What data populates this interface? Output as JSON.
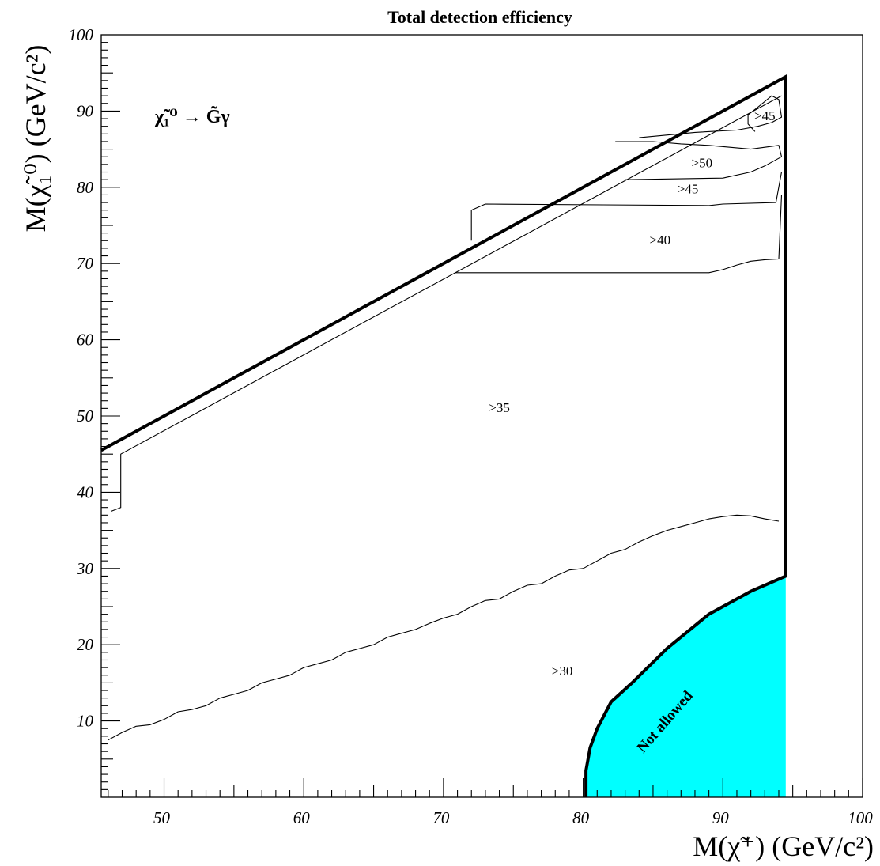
{
  "chart_data": {
    "type": "contour",
    "title": "Total detection efficiency",
    "xlabel": "M(χ̃⁺) (GeV/c²)",
    "ylabel": "M(χ̃₁⁰) (GeV/c²)",
    "xlim": [
      45.5,
      100
    ],
    "ylim": [
      0,
      100
    ],
    "x_ticks": [
      50,
      60,
      70,
      80,
      90,
      100
    ],
    "y_ticks": [
      10,
      20,
      30,
      40,
      50,
      60,
      70,
      80,
      90,
      100
    ],
    "process_label": "χ̃₁⁰ → G̃γ",
    "kinematic_boundary": [
      [
        45.5,
        45.5
      ],
      [
        94.5,
        94.5
      ],
      [
        94.5,
        29
      ],
      [
        92,
        27
      ],
      [
        89,
        24
      ],
      [
        86,
        19.5
      ],
      [
        83.5,
        15
      ],
      [
        82,
        12.5
      ],
      [
        81,
        9
      ],
      [
        80.5,
        6.5
      ],
      [
        80.2,
        3.5
      ],
      [
        80.2,
        0
      ]
    ],
    "not_allowed_region": {
      "label": "Not allowed",
      "color": "#00ffff",
      "boundary": [
        [
          80.2,
          0
        ],
        [
          80.2,
          3.5
        ],
        [
          80.5,
          6.5
        ],
        [
          81,
          9
        ],
        [
          82,
          12.5
        ],
        [
          83.5,
          15
        ],
        [
          86,
          19.5
        ],
        [
          89,
          24
        ],
        [
          92,
          27
        ],
        [
          94.5,
          29
        ],
        [
          94.5,
          0
        ]
      ]
    },
    "contours": [
      {
        "label": ">30",
        "label_at": [
          78.5,
          16
        ],
        "points": [
          [
            46,
            7.5
          ],
          [
            47,
            8.5
          ],
          [
            48,
            9.3
          ],
          [
            49,
            9.5
          ],
          [
            50,
            10.2
          ],
          [
            51,
            11.2
          ],
          [
            52,
            11.5
          ],
          [
            53,
            12
          ],
          [
            54,
            13
          ],
          [
            55,
            13.5
          ],
          [
            56,
            14
          ],
          [
            57,
            15
          ],
          [
            58,
            15.5
          ],
          [
            59,
            16
          ],
          [
            60,
            17
          ],
          [
            61,
            17.5
          ],
          [
            62,
            18
          ],
          [
            63,
            19
          ],
          [
            64,
            19.5
          ],
          [
            65,
            20
          ],
          [
            66,
            21
          ],
          [
            67,
            21.5
          ],
          [
            68,
            22
          ],
          [
            69,
            22.8
          ],
          [
            70,
            23.5
          ],
          [
            71,
            24
          ],
          [
            72,
            25
          ],
          [
            73,
            25.8
          ],
          [
            74,
            26
          ],
          [
            75,
            27
          ],
          [
            76,
            27.8
          ],
          [
            77,
            28
          ],
          [
            78,
            29
          ],
          [
            79,
            29.8
          ],
          [
            80,
            30
          ],
          [
            81,
            31
          ],
          [
            82,
            32
          ],
          [
            83,
            32.5
          ],
          [
            84,
            33.5
          ],
          [
            85,
            34.3
          ],
          [
            86,
            35
          ],
          [
            87,
            35.5
          ],
          [
            88,
            36
          ],
          [
            89,
            36.5
          ],
          [
            90,
            36.8
          ],
          [
            91,
            37
          ],
          [
            92,
            36.9
          ],
          [
            93,
            36.5
          ],
          [
            94,
            36.2
          ]
        ]
      },
      {
        "label": ">35",
        "label_at": [
          74,
          50.5
        ],
        "points": [
          [
            46.2,
            37.5
          ],
          [
            46.9,
            38
          ],
          [
            46.9,
            45
          ],
          [
            94.2,
            92
          ]
        ]
      },
      {
        "label": ">40",
        "label_at": [
          85.5,
          72.5
        ],
        "points": [
          [
            70.8,
            68.8
          ],
          [
            89,
            68.8
          ],
          [
            90,
            69.2
          ],
          [
            91,
            69.8
          ],
          [
            92,
            70.3
          ],
          [
            93,
            70.5
          ],
          [
            94,
            70.6
          ],
          [
            94.2,
            79
          ]
        ]
      },
      {
        "label": ">45",
        "label_at": [
          87.5,
          79.2
        ],
        "points": [
          [
            72,
            73
          ],
          [
            72,
            77
          ],
          [
            73,
            77.8
          ],
          [
            89,
            77.6
          ],
          [
            90,
            77.8
          ],
          [
            93.8,
            78
          ],
          [
            94.2,
            82
          ]
        ]
      },
      {
        "label": ">50",
        "label_at": [
          88.5,
          82.6
        ],
        "points": [
          [
            83,
            81
          ],
          [
            90,
            81.2
          ],
          [
            92,
            82
          ],
          [
            93,
            82.8
          ],
          [
            94.2,
            84
          ],
          [
            94,
            85.5
          ],
          [
            92,
            85
          ],
          [
            89,
            85.5
          ],
          [
            87,
            85.7
          ],
          [
            85,
            86
          ],
          [
            82.3,
            86
          ]
        ]
      },
      {
        "label": ">45",
        "label_at": [
          93,
          88.8
        ],
        "points": [
          [
            84,
            86.5
          ],
          [
            88,
            87.2
          ],
          [
            91,
            87.5
          ],
          [
            92.5,
            88
          ],
          [
            93.5,
            88.5
          ],
          [
            94.2,
            89.2
          ],
          [
            94,
            91.5
          ],
          [
            93.5,
            92
          ],
          [
            92.5,
            90.5
          ],
          [
            91.8,
            89.5
          ],
          [
            91.8,
            88.3
          ],
          [
            92.3,
            87.3
          ]
        ]
      }
    ]
  }
}
